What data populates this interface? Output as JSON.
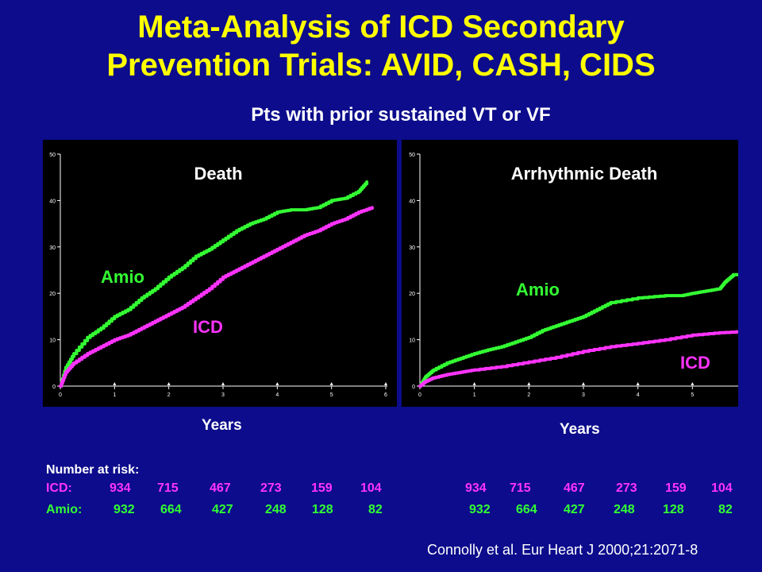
{
  "title_line1": "Meta-Analysis of ICD Secondary",
  "title_line2": "Prevention Trials: AVID, CASH, CIDS",
  "subtitle": "Pts with prior sustained VT or VF",
  "colors": {
    "background": "#0c0c8c",
    "title": "#ffff00",
    "icd": "#ff33ff",
    "amio": "#33ff33"
  },
  "chart_data": [
    {
      "type": "line",
      "title": "Death",
      "xlabel": "Years",
      "ylabel": "",
      "xlim": [
        0,
        6
      ],
      "ylim": [
        0,
        50
      ],
      "xticks": [
        "0",
        "1",
        "2",
        "3",
        "4",
        "5",
        "6"
      ],
      "yticks": [
        "0",
        "10",
        "20",
        "30",
        "40",
        "50"
      ],
      "series": [
        {
          "name": "Amio",
          "color": "#33ff33",
          "x": [
            0,
            0.1,
            0.25,
            0.5,
            0.75,
            1.0,
            1.25,
            1.5,
            1.75,
            2.0,
            2.25,
            2.5,
            2.75,
            3.0,
            3.25,
            3.5,
            3.75,
            4.0,
            4.25,
            4.5,
            4.75,
            5.0,
            5.25,
            5.5,
            5.65
          ],
          "y": [
            0,
            4,
            7,
            10.5,
            12.5,
            15,
            16.5,
            19,
            21,
            23.5,
            25.5,
            28,
            29.5,
            31.5,
            33.5,
            35,
            36,
            37.5,
            38,
            38,
            38.5,
            40,
            40.5,
            42,
            44
          ]
        },
        {
          "name": "ICD",
          "color": "#ff33ff",
          "x": [
            0,
            0.1,
            0.25,
            0.5,
            0.75,
            1.0,
            1.25,
            1.5,
            1.75,
            2.0,
            2.25,
            2.5,
            2.75,
            3.0,
            3.25,
            3.5,
            3.75,
            4.0,
            4.25,
            4.5,
            4.75,
            5.0,
            5.25,
            5.5,
            5.75
          ],
          "y": [
            0,
            3,
            5,
            7,
            8.5,
            10,
            11,
            12.5,
            14,
            15.5,
            17,
            19,
            21,
            23.5,
            25,
            26.5,
            28,
            29.5,
            31,
            32.5,
            33.5,
            35,
            36,
            37.5,
            38.5
          ]
        }
      ],
      "labels": {
        "amio": "Amio",
        "icd": "ICD"
      }
    },
    {
      "type": "line",
      "title": "Arrhythmic Death",
      "xlabel": "Years",
      "ylabel": "",
      "xlim": [
        0,
        6
      ],
      "ylim": [
        0,
        50
      ],
      "xticks": [
        "0",
        "1",
        "2",
        "3",
        "4",
        "5"
      ],
      "yticks": [
        "0",
        "10",
        "20",
        "30",
        "40",
        "50"
      ],
      "series": [
        {
          "name": "Amio",
          "color": "#33ff33",
          "x": [
            0,
            0.1,
            0.25,
            0.5,
            0.75,
            1.0,
            1.25,
            1.5,
            1.75,
            2.0,
            2.25,
            2.5,
            2.75,
            3.0,
            3.25,
            3.5,
            4.0,
            4.5,
            4.8,
            5.0,
            5.25,
            5.5,
            5.6,
            5.75,
            6.0
          ],
          "y": [
            0,
            2,
            3.5,
            5,
            6,
            7,
            7.8,
            8.5,
            9.5,
            10.5,
            12,
            13,
            14,
            15,
            16.5,
            18,
            19,
            19.5,
            19.5,
            20,
            20.5,
            21,
            22.5,
            24,
            24
          ]
        },
        {
          "name": "ICD",
          "color": "#ff33ff",
          "x": [
            0,
            0.1,
            0.25,
            0.5,
            0.75,
            1.0,
            1.5,
            2.0,
            2.5,
            3.0,
            3.5,
            4.0,
            4.5,
            5.0,
            5.5,
            6.0
          ],
          "y": [
            0,
            1,
            1.8,
            2.5,
            3,
            3.5,
            4.2,
            5.2,
            6.2,
            7.5,
            8.5,
            9.2,
            10,
            11,
            11.5,
            11.8
          ]
        }
      ],
      "labels": {
        "amio": "Amio",
        "icd": "ICD"
      }
    }
  ],
  "years_label": "Years",
  "number_at_risk": {
    "heading": "Number at risk:",
    "icd_label": "ICD:",
    "amio_label": "Amio:",
    "icd_values": [
      "934",
      "715",
      "467",
      "273",
      "159",
      "104"
    ],
    "amio_values": [
      "932",
      "664",
      "427",
      "248",
      "128",
      "82"
    ]
  },
  "citation": "Connolly et al. Eur Heart J 2000;21:2071-8"
}
